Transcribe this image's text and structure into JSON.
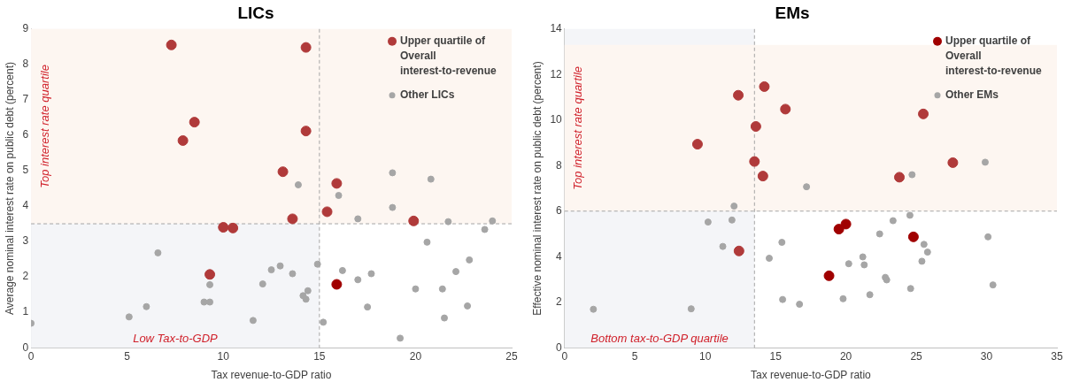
{
  "chart_data": [
    {
      "type": "scatter",
      "title": "LICs",
      "xlabel": "Tax revenue-to-GDP ratio",
      "ylabel": "Average nominal interest rate on public debt (percent)",
      "xlim": [
        0,
        25
      ],
      "xticks": [
        0,
        5,
        10,
        15,
        20,
        25
      ],
      "ylim": [
        0,
        9
      ],
      "yticks": [
        0,
        1,
        2,
        3,
        4,
        5,
        6,
        7,
        8,
        9
      ],
      "grid": false,
      "legend": "top right",
      "marker": "circle",
      "series": [
        {
          "name": "Upper quartile of Overall interest-to-revenue",
          "color": "#b03a3a",
          "colors": [
            "#b03a3a",
            "#b03a3a",
            "#b03a3a",
            "#b03a3a",
            "#b03a3a",
            "#b03a3a",
            "#b03a3a",
            "#b03a3a",
            "#b03a3a",
            "#b03a3a",
            "#b03a3a",
            "#b03a3a",
            "#b03a3a",
            "#a00000"
          ],
          "x": [
            7.3,
            14.3,
            8.5,
            7.9,
            14.3,
            13.1,
            15.9,
            15.4,
            13.6,
            19.9,
            10.0,
            10.5,
            9.3,
            15.9
          ],
          "values": [
            8.55,
            8.48,
            6.37,
            5.85,
            6.12,
            4.97,
            4.64,
            3.84,
            3.64,
            3.58,
            3.4,
            3.38,
            2.07,
            1.79
          ]
        },
        {
          "name": "Other LICs",
          "color": "#a6a6a6",
          "x": [
            13.9,
            16.0,
            18.8,
            20.8,
            18.8,
            17.0,
            21.7,
            24.0,
            23.6,
            20.6,
            22.8,
            22.1,
            20.0,
            21.4,
            22.7,
            21.5,
            19.2,
            17.5,
            17.0,
            17.7,
            16.2,
            14.9,
            15.2,
            14.4,
            14.15,
            14.3,
            13.6,
            12.96,
            12.5,
            12.05,
            11.55,
            9.3,
            9.0,
            9.3,
            6.6,
            6.0,
            5.1,
            0.0
          ],
          "values": [
            4.6,
            4.3,
            4.94,
            4.76,
            3.96,
            3.64,
            3.56,
            3.58,
            3.34,
            2.98,
            2.48,
            2.15,
            1.66,
            1.66,
            1.18,
            0.84,
            0.27,
            1.15,
            1.92,
            2.09,
            2.18,
            2.36,
            0.72,
            1.61,
            1.47,
            1.37,
            2.09,
            2.31,
            2.2,
            1.8,
            0.77,
            1.78,
            1.29,
            1.29,
            2.68,
            1.16,
            0.87,
            0.69
          ]
        }
      ],
      "bands": [
        {
          "axis": "x",
          "from": 0,
          "to": 15,
          "label": "Low Tax-to-GDP",
          "color": "#f4f5f8"
        },
        {
          "axis": "y",
          "from": 3.5,
          "to": 9,
          "label": "Top interest rate quartile",
          "color": "#fdf6f1"
        }
      ],
      "ref_lines": [
        {
          "axis": "x",
          "value": 15,
          "color": "#a6a6a6",
          "line_style": "dashed"
        },
        {
          "axis": "y",
          "value": 3.5,
          "color": "#a6a6a6",
          "line_style": "dashed"
        }
      ]
    },
    {
      "type": "scatter",
      "title": "EMs",
      "xlabel": "Tax revenue-to-GDP ratio",
      "ylabel": "Effective nominal interest rate on public debt (percent)",
      "xlim": [
        0,
        35
      ],
      "xticks": [
        0,
        5,
        10,
        15,
        20,
        25,
        30,
        35
      ],
      "ylim": [
        0,
        14
      ],
      "yticks": [
        0,
        2,
        4,
        6,
        8,
        10,
        12,
        14
      ],
      "grid": false,
      "legend": "top right",
      "marker": "circle",
      "series": [
        {
          "name": "Upper quartile of Overall interest-to-revenue",
          "color": "#a00000",
          "colors": [
            "#b03a3a",
            "#b03a3a",
            "#b03a3a",
            "#b03a3a",
            "#b03a3a",
            "#b03a3a",
            "#b03a3a",
            "#b03a3a",
            "#b03a3a",
            "#b03a3a",
            "#b03a3a",
            "#a00000",
            "#a00000",
            "#a00000",
            "#a00000"
          ],
          "x": [
            14.2,
            12.35,
            15.7,
            25.5,
            13.6,
            9.45,
            13.5,
            27.6,
            14.1,
            23.8,
            12.4,
            20.0,
            19.5,
            24.8,
            18.8
          ],
          "values": [
            11.47,
            11.09,
            10.48,
            10.27,
            9.72,
            8.94,
            8.18,
            8.13,
            7.54,
            7.49,
            4.25,
            5.43,
            5.21,
            4.87,
            3.16
          ]
        },
        {
          "name": "Other EMs",
          "color": "#a6a6a6",
          "x": [
            29.9,
            24.7,
            17.2,
            12.05,
            24.55,
            23.35,
            10.2,
            11.9,
            22.4,
            30.1,
            15.45,
            25.55,
            11.25,
            25.8,
            14.55,
            21.2,
            25.4,
            20.2,
            21.3,
            22.8,
            22.9,
            30.45,
            24.6,
            21.7,
            15.5,
            19.8,
            16.7,
            2.05,
            9.0
          ],
          "values": [
            8.15,
            7.6,
            7.07,
            6.22,
            5.82,
            5.58,
            5.52,
            5.61,
            5.0,
            4.87,
            4.63,
            4.54,
            4.45,
            4.2,
            3.93,
            3.99,
            3.8,
            3.69,
            3.64,
            3.09,
            2.98,
            2.76,
            2.6,
            2.33,
            2.12,
            2.15,
            1.91,
            1.69,
            1.71
          ]
        }
      ],
      "bands": [
        {
          "axis": "x",
          "from": 0,
          "to": 13.5,
          "label": "Bottom tax-to-GDP quartile",
          "color": "#f4f5f8"
        },
        {
          "axis": "y",
          "from": 6,
          "to": 13.3,
          "label": "Top interest rate quartile",
          "color": "#fdf6f1"
        }
      ],
      "ref_lines": [
        {
          "axis": "x",
          "value": 13.5,
          "color": "#a6a6a6",
          "line_style": "dashed"
        },
        {
          "axis": "y",
          "value": 6,
          "color": "#a6a6a6",
          "line_style": "dashed"
        }
      ]
    }
  ]
}
